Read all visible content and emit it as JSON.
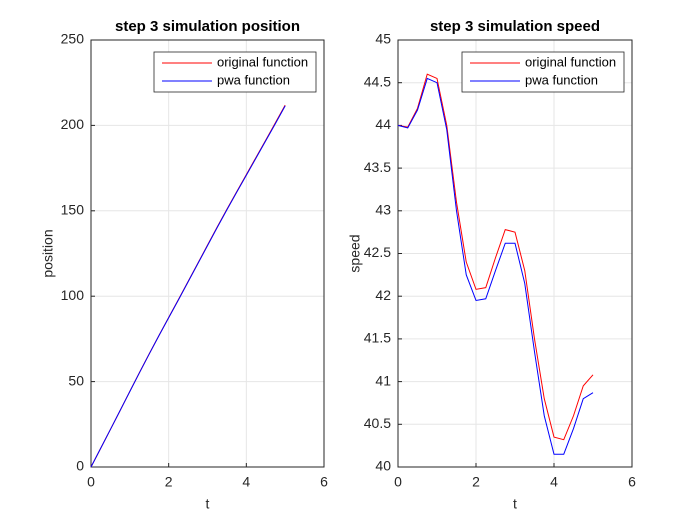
{
  "chart_data": [
    {
      "type": "line",
      "title": "step 3 simulation position",
      "x_label": "t",
      "y_label": "position",
      "x": [
        0,
        0.25,
        0.5,
        0.75,
        1,
        1.25,
        1.5,
        1.75,
        2,
        2.25,
        2.5,
        2.75,
        3,
        3.25,
        3.5,
        3.75,
        4,
        4.25,
        4.5,
        4.75,
        5
      ],
      "series": [
        {
          "name": "original function",
          "color": "#ff0000",
          "values": [
            0,
            11.0,
            22.0,
            33.1,
            44.3,
            55.4,
            66.3,
            77.0,
            87.5,
            98.0,
            108.6,
            119.2,
            129.9,
            140.5,
            150.9,
            161.1,
            171.2,
            181.3,
            191.4,
            201.6,
            211.9
          ]
        },
        {
          "name": "pwa function",
          "color": "#0000ff",
          "values": [
            0,
            11.0,
            22.0,
            33.1,
            44.2,
            55.3,
            66.2,
            76.9,
            87.4,
            97.8,
            108.4,
            119.0,
            129.6,
            140.2,
            150.6,
            160.8,
            170.8,
            180.9,
            191.0,
            201.1,
            211.4
          ]
        }
      ],
      "xlim": [
        0,
        6
      ],
      "xticks": [
        0,
        2,
        4,
        6
      ],
      "ylim": [
        0,
        250
      ],
      "yticks": [
        0,
        50,
        100,
        150,
        200,
        250
      ],
      "grid": true,
      "legend": "upper-right"
    },
    {
      "type": "line",
      "title": "step 3 simulation speed",
      "x_label": "t",
      "y_label": "speed",
      "x": [
        0,
        0.25,
        0.5,
        0.75,
        1,
        1.25,
        1.5,
        1.75,
        2,
        2.25,
        2.5,
        2.75,
        3,
        3.25,
        3.5,
        3.75,
        4,
        4.25,
        4.5,
        4.75,
        5
      ],
      "series": [
        {
          "name": "original function",
          "color": "#ff0000",
          "values": [
            44.0,
            43.98,
            44.2,
            44.6,
            44.55,
            44.0,
            43.1,
            42.4,
            42.08,
            42.1,
            42.45,
            42.78,
            42.75,
            42.3,
            41.5,
            40.8,
            40.35,
            40.32,
            40.6,
            40.95,
            41.08
          ]
        },
        {
          "name": "pwa function",
          "color": "#0000ff",
          "values": [
            44.0,
            43.97,
            44.18,
            44.55,
            44.5,
            43.95,
            43.0,
            42.25,
            41.95,
            41.97,
            42.3,
            42.62,
            42.62,
            42.15,
            41.35,
            40.6,
            40.15,
            40.15,
            40.45,
            40.8,
            40.87
          ]
        }
      ],
      "xlim": [
        0,
        6
      ],
      "xticks": [
        0,
        2,
        4,
        6
      ],
      "ylim": [
        40,
        45
      ],
      "yticks": [
        40,
        40.5,
        41,
        41.5,
        42,
        42.5,
        43,
        43.5,
        44,
        44.5,
        45
      ],
      "grid": true,
      "legend": "upper-right"
    }
  ]
}
